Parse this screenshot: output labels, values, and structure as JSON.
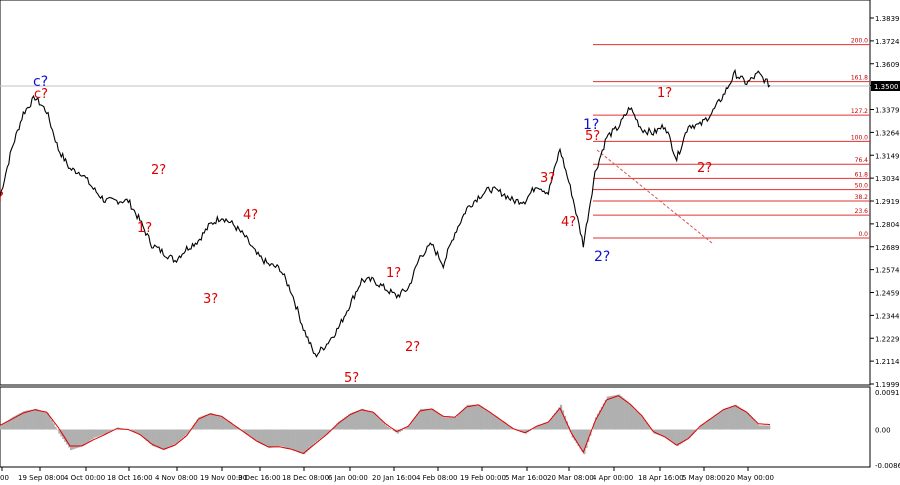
{
  "colors": {
    "price_line": "#000000",
    "fib_line": "#e03030",
    "wave_red": "#e00000",
    "wave_blue": "#1010d0",
    "histogram": "#b0b0b0",
    "signal_line": "#e00000",
    "current_price_bg": "#000000",
    "current_price_line": "#c0c0c0"
  },
  "chart_data": [
    {
      "type": "line",
      "panel": "price",
      "y_ticks": [
        "1.3839",
        "1.3724",
        "1.3609",
        "1.3500",
        "1.3379",
        "1.3264",
        "1.3149",
        "1.3034",
        "1.2919",
        "1.2804",
        "1.2689",
        "1.2574",
        "1.2459",
        "1.2344",
        "1.2229",
        "1.2114",
        "1.1999"
      ],
      "ylim": [
        1.1999,
        1.3839
      ],
      "current_price": "1.3500",
      "series": [
        {
          "values": [
            1.294,
            1.318,
            1.336,
            1.344,
            1.337,
            1.318,
            1.308,
            1.306,
            1.298,
            1.292,
            1.292,
            1.292,
            1.282,
            1.27,
            1.266,
            1.262,
            1.268,
            1.272,
            1.28,
            1.284,
            1.28,
            1.274,
            1.265,
            1.26,
            1.258,
            1.246,
            1.228,
            1.214,
            1.22,
            1.228,
            1.24,
            1.252,
            1.252,
            1.248,
            1.244,
            1.248,
            1.264,
            1.27,
            1.26,
            1.276,
            1.288,
            1.294,
            1.298,
            1.296,
            1.292,
            1.292,
            1.3,
            1.296,
            1.318,
            1.296,
            1.27,
            1.306,
            1.324,
            1.329,
            1.339,
            1.328,
            1.326,
            1.33,
            1.313,
            1.33,
            1.33,
            1.336,
            1.345,
            1.356,
            1.351,
            1.356,
            1.35
          ]
        }
      ]
    },
    {
      "type": "area",
      "panel": "oscillator",
      "y_ticks": [
        "0.0091",
        "0.00",
        "-0.0086"
      ],
      "ylim": [
        -0.0086,
        0.0091
      ],
      "series": [
        {
          "name": "histogram",
          "values": [
            0.001,
            0.003,
            0.0045,
            0.005,
            0.004,
            -0.001,
            -0.005,
            -0.004,
            -0.002,
            -0.001,
            0.0005,
            0.0,
            -0.0015,
            -0.004,
            -0.005,
            -0.0035,
            -0.001,
            0.003,
            0.004,
            0.003,
            0.001,
            -0.001,
            -0.003,
            -0.0045,
            -0.004,
            -0.005,
            -0.006,
            -0.003,
            -0.001,
            0.002,
            0.004,
            0.005,
            0.004,
            0.001,
            -0.001,
            0.001,
            0.005,
            0.005,
            0.003,
            0.003,
            0.006,
            0.006,
            0.004,
            0.002,
            0.0,
            -0.001,
            0.001,
            0.002,
            0.006,
            -0.002,
            -0.006,
            0.003,
            0.008,
            0.0085,
            0.006,
            0.003,
            -0.001,
            -0.002,
            -0.004,
            -0.002,
            0.001,
            0.003,
            0.005,
            0.006,
            0.004,
            0.001,
            0.001
          ]
        },
        {
          "name": "signal",
          "values": [
            0.001,
            0.0025,
            0.004,
            0.0048,
            0.0042,
            0.0005,
            -0.004,
            -0.004,
            -0.0025,
            -0.0012,
            0.0002,
            0.0,
            -0.0012,
            -0.0035,
            -0.0048,
            -0.0038,
            -0.0015,
            0.0025,
            0.0038,
            0.0032,
            0.0012,
            -0.0008,
            -0.0028,
            -0.0042,
            -0.0042,
            -0.0048,
            -0.0058,
            -0.0035,
            -0.0012,
            0.0015,
            0.0036,
            0.0048,
            0.0042,
            0.0015,
            -0.0005,
            0.0008,
            0.0045,
            0.005,
            0.0032,
            0.003,
            0.0055,
            0.006,
            0.0042,
            0.0022,
            0.0002,
            -0.0008,
            0.0008,
            0.0018,
            0.0052,
            -0.001,
            -0.0055,
            0.002,
            0.0072,
            0.0082,
            0.0062,
            0.0034,
            -0.0005,
            -0.0018,
            -0.0038,
            -0.0022,
            0.0008,
            0.0028,
            0.0048,
            0.0058,
            0.0042,
            0.0014,
            0.0012
          ]
        }
      ]
    }
  ],
  "x_ticks": [
    "00",
    "19 Sep 08:00",
    "4 Oct 00:00",
    "18 Oct 16:00",
    "4 Nov 08:00",
    "19 Nov 00:00",
    "3 Dec 16:00",
    "18 Dec 08:00",
    "6 Jan 00:00",
    "20 Jan 16:00",
    "4 Feb 08:00",
    "19 Feb 00:00",
    "5 Mar 16:00",
    "20 Mar 08:00",
    "4 Apr 00:00",
    "18 Apr 16:00",
    "5 May 08:00",
    "20 May 00:00"
  ],
  "fib_levels": [
    {
      "label": "200.0",
      "price": 1.3705
    },
    {
      "label": "161.8",
      "price": 1.3519
    },
    {
      "label": "127.2",
      "price": 1.3351
    },
    {
      "label": "100.0",
      "price": 1.3219
    },
    {
      "label": "76.4",
      "price": 1.3104
    },
    {
      "label": "61.8",
      "price": 1.3033
    },
    {
      "label": "50.0",
      "price": 1.2976
    },
    {
      "label": "38.2",
      "price": 1.2919
    },
    {
      "label": "23.6",
      "price": 1.2848
    },
    {
      "label": "0.0",
      "price": 1.2733
    }
  ],
  "wave_labels": {
    "c_red": "c?",
    "c_blue": "c?",
    "w2_a": "2?",
    "w1_a": "1?",
    "w3_a": "3?",
    "w4_a": "4?",
    "w5_a": "5?",
    "w1_b": "1?",
    "w2_b": "2?",
    "w3_b": "3?",
    "w4_b": "4?",
    "w5_b": "5?",
    "blue1": "1?",
    "blue2": "2?",
    "w1_c": "1?",
    "w2_c": "2?",
    "left_edge": "?"
  }
}
